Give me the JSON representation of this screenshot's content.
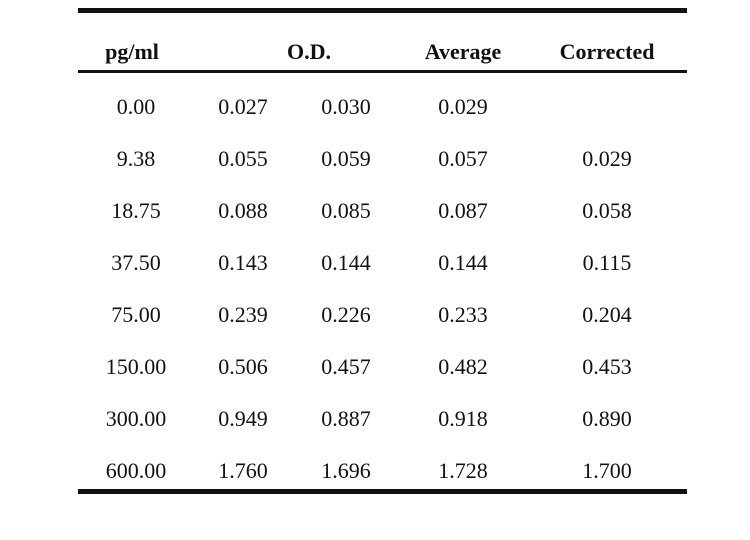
{
  "table": {
    "headers": {
      "conc": "pg/ml",
      "od": "O.D.",
      "average": "Average",
      "corrected": "Corrected"
    },
    "rows": [
      {
        "conc": "0.00",
        "od1": "0.027",
        "od2": "0.030",
        "average": "0.029",
        "corrected": ""
      },
      {
        "conc": "9.38",
        "od1": "0.055",
        "od2": "0.059",
        "average": "0.057",
        "corrected": "0.029"
      },
      {
        "conc": "18.75",
        "od1": "0.088",
        "od2": "0.085",
        "average": "0.087",
        "corrected": "0.058"
      },
      {
        "conc": "37.50",
        "od1": "0.143",
        "od2": "0.144",
        "average": "0.144",
        "corrected": "0.115"
      },
      {
        "conc": "75.00",
        "od1": "0.239",
        "od2": "0.226",
        "average": "0.233",
        "corrected": "0.204"
      },
      {
        "conc": "150.00",
        "od1": "0.506",
        "od2": "0.457",
        "average": "0.482",
        "corrected": "0.453"
      },
      {
        "conc": "300.00",
        "od1": "0.949",
        "od2": "0.887",
        "average": "0.918",
        "corrected": "0.890"
      },
      {
        "conc": "600.00",
        "od1": "1.760",
        "od2": "1.696",
        "average": "1.728",
        "corrected": "1.700"
      }
    ]
  }
}
